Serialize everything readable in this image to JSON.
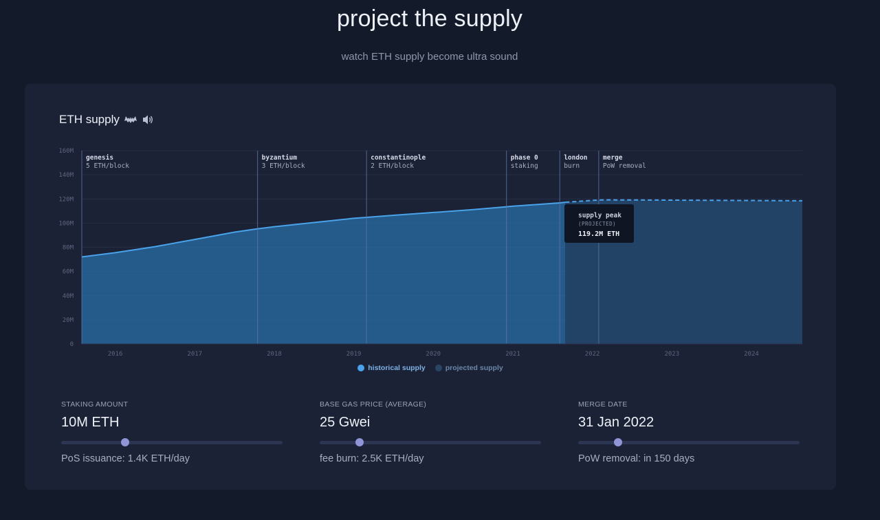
{
  "header": {
    "title": "project the supply",
    "subtitle": "watch ETH supply become ultra sound"
  },
  "card": {
    "title": "ETH supply"
  },
  "chart_data": {
    "type": "area",
    "title": "ETH supply",
    "y_ticks": [
      "0",
      "20M",
      "40M",
      "60M",
      "80M",
      "100M",
      "120M",
      "140M",
      "160M"
    ],
    "x_ticks": [
      "2016",
      "2017",
      "2018",
      "2019",
      "2020",
      "2021",
      "2022",
      "2023",
      "2024"
    ],
    "xlim": [
      2015.58,
      2024.64
    ],
    "ylim": [
      0,
      160
    ],
    "grid": true,
    "legend_position": "bottom",
    "series": [
      {
        "name": "historical supply",
        "color": "#4a9be0",
        "x": [
          2015.58,
          2016.0,
          2016.5,
          2017.0,
          2017.5,
          2017.79,
          2018.0,
          2018.5,
          2019.0,
          2019.16,
          2019.5,
          2020.0,
          2020.5,
          2020.92,
          2021.0,
          2021.3,
          2021.6,
          2021.66
        ],
        "y": [
          72.0,
          75.5,
          80.5,
          86.5,
          92.5,
          95.3,
          97.0,
          100.5,
          104.0,
          104.8,
          106.5,
          108.8,
          111.2,
          113.5,
          114.0,
          115.4,
          116.8,
          117.3
        ]
      },
      {
        "name": "projected supply",
        "color": "#23466f",
        "x": [
          2021.66,
          2021.8,
          2022.0,
          2022.13,
          2022.5,
          2023.0,
          2023.5,
          2024.0,
          2024.64
        ],
        "y": [
          117.3,
          117.9,
          118.8,
          119.2,
          119.15,
          119.0,
          118.85,
          118.7,
          118.5
        ]
      }
    ],
    "events": [
      {
        "x": 2015.58,
        "name": "genesis",
        "detail": "5 ETH/block"
      },
      {
        "x": 2017.79,
        "name": "byzantium",
        "detail": "3 ETH/block"
      },
      {
        "x": 2019.16,
        "name": "constantinople",
        "detail": "2 ETH/block"
      },
      {
        "x": 2020.92,
        "name": "phase 0",
        "detail": "staking"
      },
      {
        "x": 2021.59,
        "name": "london",
        "detail": "burn"
      },
      {
        "x": 2022.08,
        "name": "merge",
        "detail": "PoW removal"
      }
    ],
    "annotation": {
      "x": 2022.13,
      "title": "supply peak",
      "subtitle": "(PROJECTED)",
      "value": "119.2M ETH"
    }
  },
  "controls": [
    {
      "label": "STAKING AMOUNT",
      "value": "10M ETH",
      "slider_fraction": 0.29,
      "description": "PoS issuance: 1.4K ETH/day"
    },
    {
      "label": "BASE GAS PRICE (AVERAGE)",
      "value": "25 Gwei",
      "slider_fraction": 0.18,
      "description": "fee burn: 2.5K ETH/day"
    },
    {
      "label": "MERGE DATE",
      "value": "31 Jan 2022",
      "slider_fraction": 0.18,
      "description": "PoW removal: in 150 days"
    }
  ],
  "colors": {
    "background": "#131a2a",
    "card": "#1b2236",
    "historical": "#4a9be0",
    "projected": "#23466f",
    "slider_thumb": "#8f95d6"
  }
}
